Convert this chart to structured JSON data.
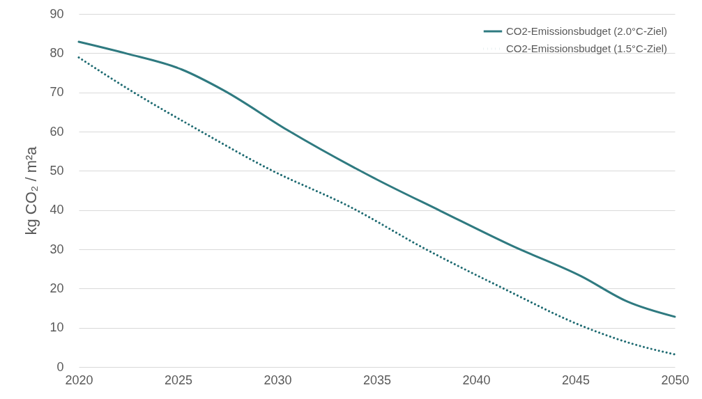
{
  "chart_data": {
    "type": "line",
    "ylabel": "kg CO₂ / m²a",
    "xlim": [
      2020,
      2050
    ],
    "xticks": [
      2020,
      2025,
      2030,
      2035,
      2040,
      2045,
      2050
    ],
    "ylim": [
      0,
      90
    ],
    "yticks": [
      0,
      10,
      20,
      30,
      40,
      50,
      60,
      70,
      80,
      90
    ],
    "grid": "y",
    "legend": "top right",
    "marker": "none",
    "series": [
      {
        "name": "CO2-Emissionsbudget (2.0°C-Ziel)",
        "color": "#2f7a80",
        "line_style": "solid",
        "x": [
          2020,
          2022.4,
          2025.2,
          2027.3,
          2030.5,
          2035,
          2038.2,
          2041.8,
          2045.3,
          2047.6,
          2050
        ],
        "values": [
          82.9,
          79.9,
          75.8,
          70.5,
          60.4,
          47.8,
          39.8,
          30.9,
          23.1,
          16.7,
          12.8
        ]
      },
      {
        "name": "CO2-Emissionsbudget (1.5°C-Ziel)",
        "color": "#1f6b72",
        "line_style": "dotted",
        "x": [
          2020,
          2022.7,
          2026.1,
          2029.6,
          2033.7,
          2037.4,
          2041.3,
          2045.5,
          2047.8,
          2050
        ],
        "values": [
          78.9,
          70.2,
          60.2,
          50.4,
          40.7,
          30.2,
          20.2,
          10.1,
          6.0,
          3.2
        ]
      }
    ]
  }
}
